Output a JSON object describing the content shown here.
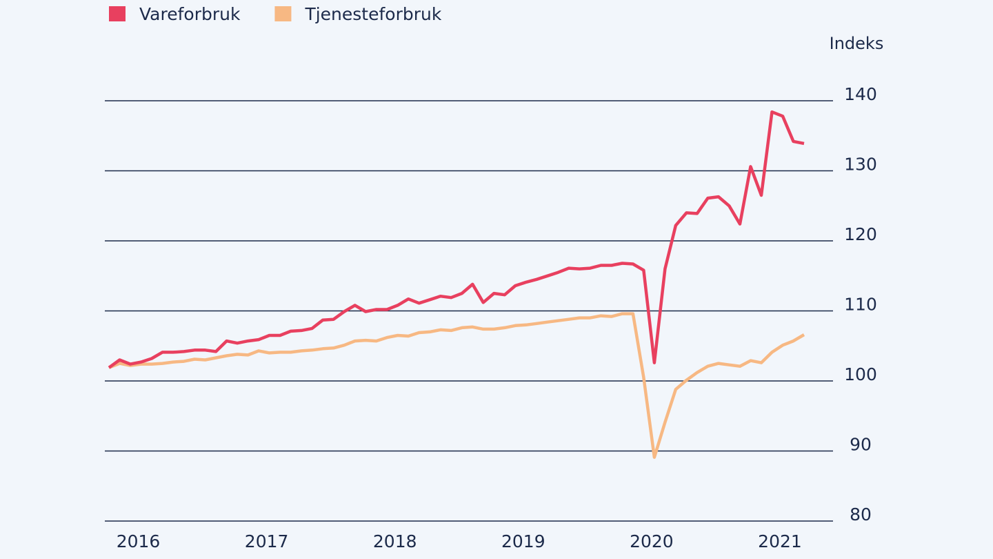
{
  "chart_data": {
    "type": "line",
    "y_label": "Indeks",
    "categories": [
      null,
      null,
      null,
      "2016",
      null,
      null,
      null,
      null,
      null,
      null,
      null,
      null,
      null,
      null,
      null,
      "2017",
      null,
      null,
      null,
      null,
      null,
      null,
      null,
      null,
      null,
      null,
      null,
      "2018",
      null,
      null,
      null,
      null,
      null,
      null,
      null,
      null,
      null,
      null,
      null,
      "2019",
      null,
      null,
      null,
      null,
      null,
      null,
      null,
      null,
      null,
      null,
      null,
      "2020",
      null,
      null,
      null,
      null,
      null,
      null,
      null,
      null,
      null,
      null,
      null,
      "2021",
      null,
      null
    ],
    "series": [
      {
        "name": "Vareforbruk",
        "color": "#e8405f",
        "values": [
          101.9,
          103.0,
          102.4,
          102.7,
          103.2,
          104.1,
          104.1,
          104.2,
          104.4,
          104.4,
          104.2,
          105.7,
          105.4,
          105.7,
          105.9,
          106.5,
          106.5,
          107.1,
          107.2,
          107.5,
          108.7,
          108.8,
          109.9,
          110.8,
          109.9,
          110.2,
          110.2,
          110.8,
          111.7,
          111.1,
          111.6,
          112.1,
          111.9,
          112.5,
          113.8,
          111.2,
          112.5,
          112.3,
          113.6,
          114.1,
          114.5,
          115.0,
          115.5,
          116.1,
          116.0,
          116.1,
          116.5,
          116.5,
          116.8,
          116.7,
          115.8,
          102.6,
          116.0,
          122.2,
          124.0,
          123.9,
          126.1,
          126.3,
          125.0,
          122.4,
          130.6,
          126.5,
          138.4,
          137.8,
          134.2,
          133.9
        ]
      },
      {
        "name": "Tjenesteforbruk",
        "color": "#f7b883",
        "values": [
          101.9,
          102.5,
          102.2,
          102.4,
          102.4,
          102.5,
          102.7,
          102.8,
          103.1,
          103.0,
          103.3,
          103.6,
          103.8,
          103.7,
          104.3,
          104.0,
          104.1,
          104.1,
          104.3,
          104.4,
          104.6,
          104.7,
          105.1,
          105.7,
          105.8,
          105.7,
          106.2,
          106.5,
          106.4,
          106.9,
          107.0,
          107.3,
          107.2,
          107.6,
          107.7,
          107.4,
          107.4,
          107.6,
          107.9,
          108.0,
          108.2,
          108.4,
          108.6,
          108.8,
          109.0,
          109.0,
          109.3,
          109.2,
          109.6,
          109.6,
          100.5,
          89.1,
          94.1,
          98.8,
          100.1,
          101.2,
          102.1,
          102.5,
          102.3,
          102.1,
          102.9,
          102.6,
          104.1,
          105.1,
          105.7,
          106.6
        ]
      }
    ],
    "ylim": [
      80,
      140
    ],
    "yticks": [
      80,
      90,
      100,
      110,
      120,
      130,
      140
    ],
    "grid": true,
    "legend": "top-left"
  }
}
